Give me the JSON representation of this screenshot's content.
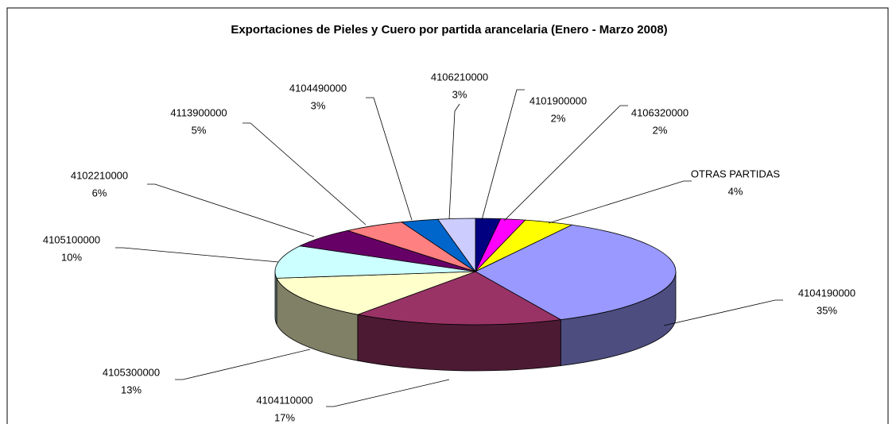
{
  "chart_data": {
    "type": "pie3d",
    "title": "Exportaciones de Pieles y Cuero por partida arancelaria (Enero - Marzo 2008)",
    "categories": [
      "4101900000",
      "4106320000",
      "OTRAS PARTIDAS",
      "4104190000",
      "4104110000",
      "4105300000",
      "4105100000",
      "4102210000",
      "4113900000",
      "4104490000",
      "4106210000"
    ],
    "values": [
      2,
      2,
      4,
      35,
      17,
      13,
      10,
      6,
      5,
      3,
      3
    ],
    "value_labels": [
      "2%",
      "2%",
      "4%",
      "35%",
      "17%",
      "13%",
      "10%",
      "6%",
      "5%",
      "3%",
      "3%"
    ],
    "colors": [
      "#000080",
      "#ff00ff",
      "#ffff00",
      "#9999ff",
      "#993366",
      "#ffffcc",
      "#ccffff",
      "#660066",
      "#ff8080",
      "#0066cc",
      "#ccccff"
    ]
  }
}
